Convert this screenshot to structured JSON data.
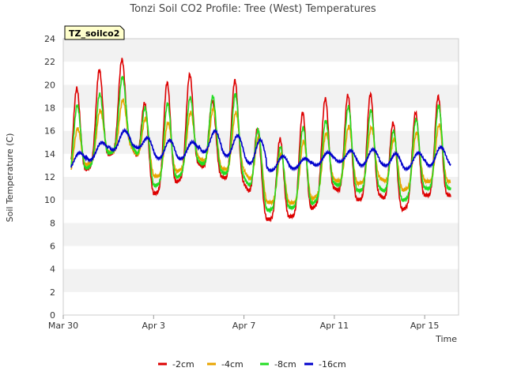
{
  "chart_data": {
    "type": "line",
    "title": "Tonzi Soil CO2 Profile: Tree (West) Temperatures",
    "xlabel": "Time",
    "ylabel": "Soil Temperature (C)",
    "tag": "TZ_soilco2",
    "ylim": [
      0,
      24
    ],
    "yticks": [
      0,
      2,
      4,
      6,
      8,
      10,
      12,
      14,
      16,
      18,
      20,
      22,
      24
    ],
    "xlim": [
      0,
      17.5
    ],
    "xticks": [
      {
        "x": 0,
        "label": "Mar 30"
      },
      {
        "x": 4,
        "label": "Apr 3"
      },
      {
        "x": 8,
        "label": "Apr 7"
      },
      {
        "x": 12,
        "label": "Apr 11"
      },
      {
        "x": 16,
        "label": "Apr 15"
      }
    ],
    "grid": "horizontal bands",
    "legend_position": "bottom",
    "x_units": "days since Mar 30",
    "series": [
      {
        "name": "-2cm",
        "color": "#dd0000",
        "day_min": [
          11.2,
          12.6,
          13.9,
          14.8,
          10.5,
          11.5,
          13.1,
          12.0,
          11.4,
          8.3,
          8.5,
          9.2,
          11.0,
          10.0,
          10.4,
          9.1,
          10.4
        ],
        "day_max": [
          19.7,
          21.3,
          22.2,
          18.4,
          20.2,
          20.9,
          18.6,
          20.4,
          16.2,
          15.3,
          17.6,
          18.8,
          19.1,
          19.2,
          16.7,
          17.6,
          19.0
        ]
      },
      {
        "name": "-4cm",
        "color": "#e8a400",
        "day_min": [
          11.8,
          13.0,
          14.1,
          14.6,
          12.0,
          12.4,
          13.6,
          12.7,
          12.5,
          9.8,
          9.7,
          10.0,
          11.7,
          11.4,
          11.9,
          10.8,
          11.6
        ],
        "day_max": [
          16.2,
          17.8,
          18.7,
          17.1,
          16.7,
          17.6,
          17.9,
          17.6,
          15.4,
          14.0,
          15.1,
          15.8,
          16.4,
          16.3,
          15.3,
          15.8,
          16.5
        ]
      },
      {
        "name": "-8cm",
        "color": "#22dd22",
        "day_min": [
          11.6,
          12.7,
          14.0,
          14.9,
          11.2,
          11.9,
          13.3,
          12.4,
          11.9,
          9.1,
          9.3,
          9.6,
          11.4,
          10.8,
          11.0,
          9.9,
          11.0
        ],
        "day_max": [
          18.2,
          19.2,
          20.7,
          18.0,
          18.4,
          18.9,
          19.0,
          19.2,
          16.1,
          14.6,
          16.3,
          16.9,
          18.1,
          17.8,
          16.0,
          17.0,
          18.2
        ]
      },
      {
        "name": "-16cm",
        "color": "#0000cc",
        "day_min": [
          12.4,
          13.3,
          14.2,
          14.8,
          13.7,
          13.4,
          14.2,
          14.0,
          13.4,
          12.5,
          12.7,
          12.9,
          13.4,
          13.0,
          13.1,
          12.6,
          13.0
        ],
        "day_max": [
          14.1,
          15.0,
          16.0,
          15.4,
          15.2,
          15.0,
          16.0,
          15.6,
          15.2,
          13.8,
          13.6,
          14.1,
          14.3,
          14.4,
          14.0,
          14.1,
          14.6
        ]
      }
    ]
  }
}
